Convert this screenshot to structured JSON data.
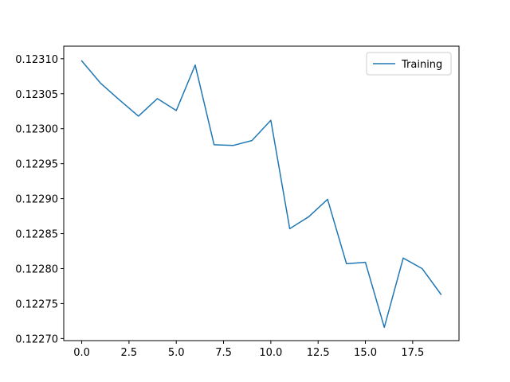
{
  "chart_data": {
    "type": "line",
    "title": "",
    "xlabel": "",
    "ylabel": "",
    "xlim": [
      -0.95,
      19.95
    ],
    "ylim": [
      0.122697,
      0.123118
    ],
    "x_ticks": [
      0.0,
      2.5,
      5.0,
      7.5,
      10.0,
      12.5,
      15.0,
      17.5
    ],
    "x_tick_labels": [
      "0.0",
      "2.5",
      "5.0",
      "7.5",
      "10.0",
      "12.5",
      "15.0",
      "17.5"
    ],
    "y_ticks": [
      0.1227,
      0.12275,
      0.1228,
      0.12285,
      0.1229,
      0.12295,
      0.123,
      0.12305,
      0.1231
    ],
    "y_tick_labels": [
      "0.12270",
      "0.12275",
      "0.12280",
      "0.12285",
      "0.12290",
      "0.12295",
      "0.12300",
      "0.12305",
      "0.12310"
    ],
    "grid": false,
    "legend_position": "upper-right",
    "series": [
      {
        "name": "Training",
        "color": "#1f77b4",
        "x": [
          0,
          1,
          2,
          3,
          4,
          5,
          6,
          7,
          8,
          9,
          10,
          11,
          12,
          13,
          14,
          15,
          16,
          17,
          18,
          19
        ],
        "y": [
          0.123097,
          0.123065,
          0.123041,
          0.123018,
          0.123043,
          0.123026,
          0.123091,
          0.122977,
          0.122976,
          0.122983,
          0.123012,
          0.122857,
          0.122874,
          0.122899,
          0.122807,
          0.122809,
          0.122716,
          0.122815,
          0.1228,
          0.122763
        ]
      }
    ]
  }
}
